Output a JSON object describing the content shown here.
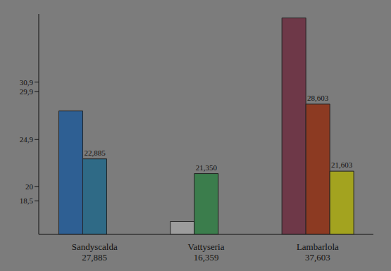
{
  "chart_data": {
    "type": "bar",
    "categories": [
      "Sandyscalda",
      "Vattyseria",
      "Lambarlola"
    ],
    "series": [
      {
        "colors": [
          "#2e5f93",
          "#9c9c9c",
          "#6e3848"
        ],
        "values": [
          27.885,
          16.359,
          37.603
        ],
        "value_labels": [
          "27,885",
          "16,359",
          "37,603"
        ]
      },
      {
        "colors": [
          "#2f6a86",
          "#3b7d4c",
          "#8c3a22"
        ],
        "values": [
          22.885,
          21.35,
          28.603
        ],
        "value_labels": [
          "22,885",
          "21,350",
          "28,603"
        ],
        "data_labels": true
      },
      {
        "color": "#a3a31f",
        "values": [
          null,
          null,
          21.603
        ],
        "value_labels": [
          null,
          null,
          "21,603"
        ],
        "data_labels": true
      }
    ],
    "ylim": [
      15,
      38
    ],
    "yticks": [
      {
        "value": 18.5,
        "label": "18,5"
      },
      20,
      {
        "value": 24.9,
        "label": "24,9"
      },
      {
        "value": 29.9,
        "label": "29,9"
      },
      {
        "value": 30.9,
        "label": "30,9"
      }
    ],
    "grid": false
  }
}
